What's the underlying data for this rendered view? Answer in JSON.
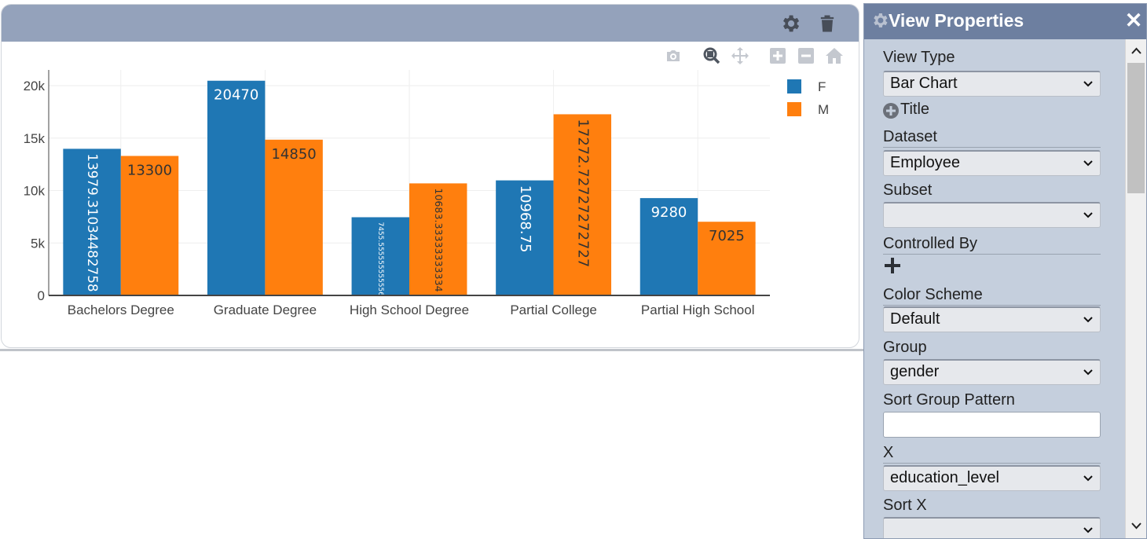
{
  "card": {
    "header_icons": [
      "gear-icon",
      "trash-icon"
    ],
    "header_color": "#94a2bb",
    "modebar_icons": [
      "camera-icon",
      "zoom-icon",
      "pan-icon",
      "zoom-in-icon",
      "zoom-out-icon",
      "reset-axes-home-icon"
    ]
  },
  "chart_data": {
    "type": "bar",
    "categories": [
      "Bachelors Degree",
      "Graduate Degree",
      "High School Degree",
      "Partial College",
      "Partial High School"
    ],
    "series": [
      {
        "name": "F",
        "color": "#1f77b4",
        "values": [
          13979.3103448276,
          20470,
          7455.5555555556,
          10968.75,
          9280
        ],
        "labels": [
          "13979.31034482758",
          "20470",
          "7455.555555555556",
          "10968.75",
          "9280"
        ]
      },
      {
        "name": "M",
        "color": "#ff7f0e",
        "values": [
          13300,
          14850,
          10683.3333333333,
          17272.7272727273,
          7025
        ],
        "labels": [
          "13300",
          "14850",
          "10683.33333333334",
          "17272.72727272727",
          "7025"
        ]
      }
    ],
    "ylim": [
      0,
      21500
    ],
    "yticks": [
      0,
      5000,
      10000,
      15000,
      20000
    ],
    "ytick_labels": [
      "0",
      "5k",
      "10k",
      "15k",
      "20k"
    ],
    "grid": true,
    "legend_position": "top-right"
  },
  "panel": {
    "title": "View Properties",
    "close_label": "✕",
    "view_type_label": "View Type",
    "view_type_value": "Bar Chart",
    "title_toggle_label": "Title",
    "dataset_label": "Dataset",
    "dataset_value": "Employee",
    "subset_label": "Subset",
    "subset_value": "",
    "controlled_by_label": "Controlled By",
    "color_scheme_label": "Color Scheme",
    "color_scheme_value": "Default",
    "group_label": "Group",
    "group_value": "gender",
    "sort_group_pattern_label": "Sort Group Pattern",
    "sort_group_pattern_value": "",
    "x_label": "X",
    "x_value": "education_level",
    "sort_x_label": "Sort X",
    "sort_x_value": "",
    "header_color": "#6d7fa0",
    "body_color": "#c5cfdd"
  }
}
